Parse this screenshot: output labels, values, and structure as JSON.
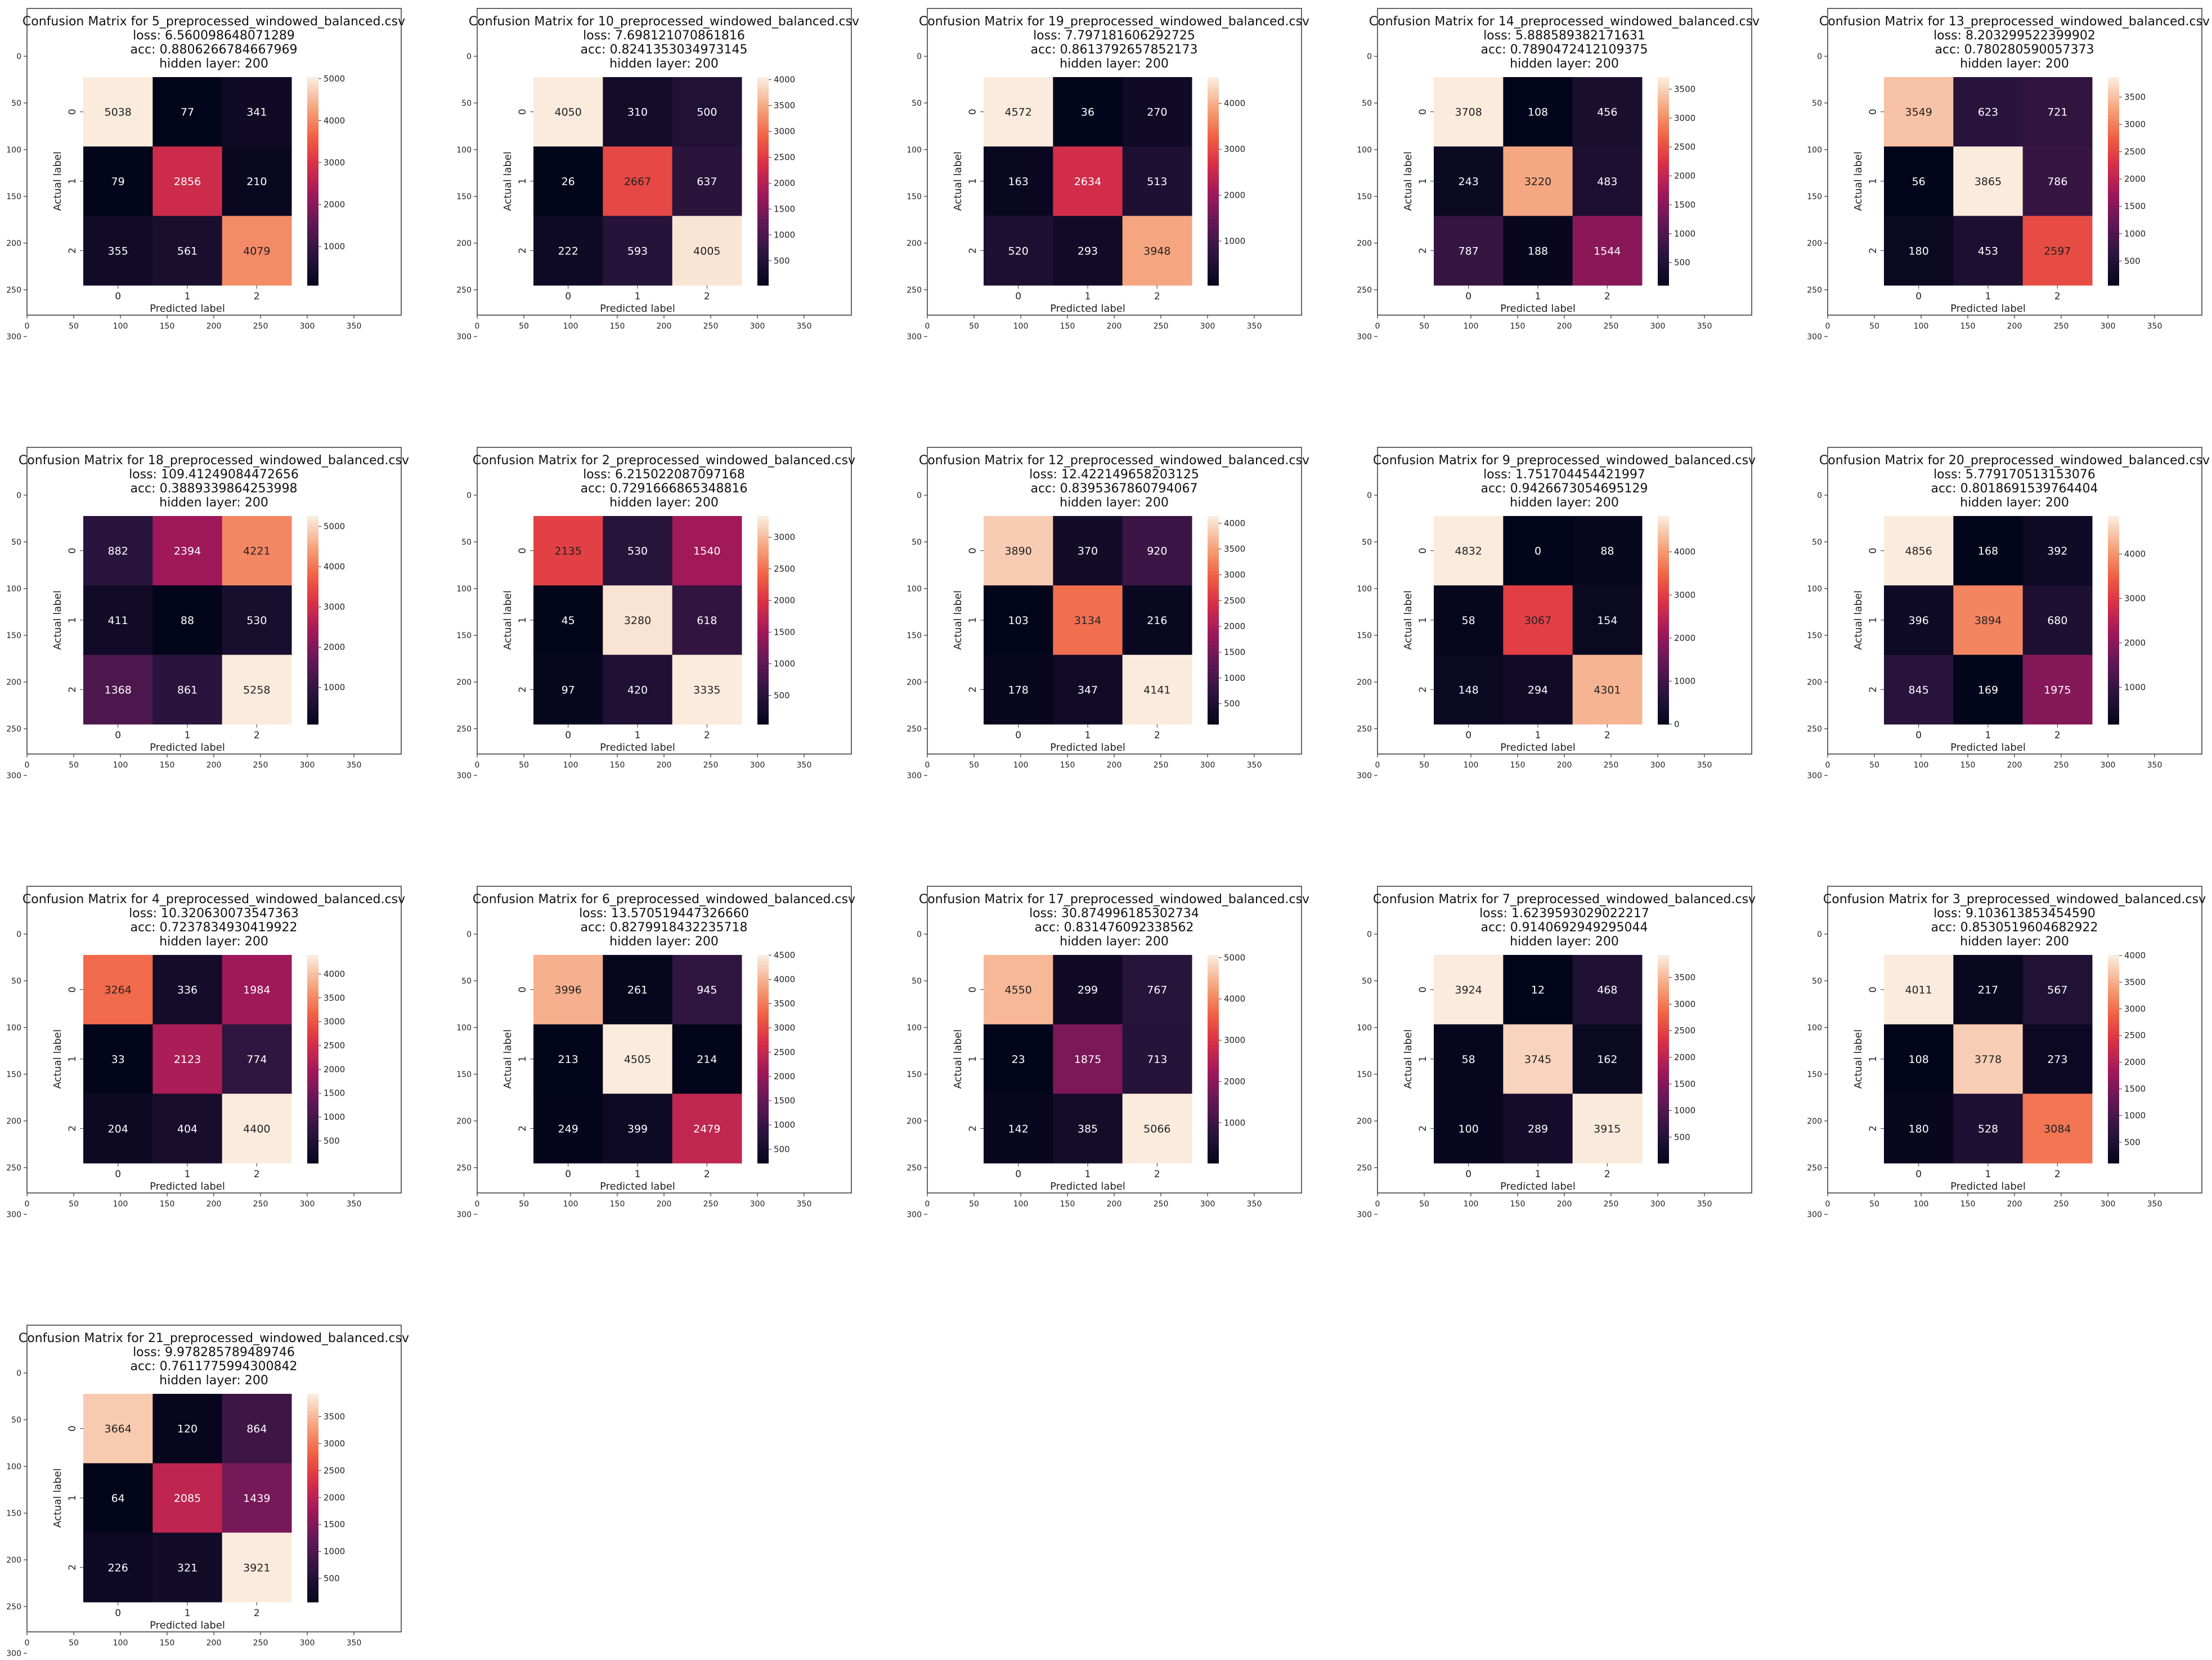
{
  "common": {
    "hidden_label": "hidden layer: 200",
    "xlabel": "Predicted label",
    "ylabel": "Actual label",
    "class_labels": [
      "0",
      "1",
      "2"
    ],
    "outer_y_ticks": [
      "0",
      "50",
      "100",
      "150",
      "200",
      "250",
      "300"
    ],
    "outer_x_ticks": [
      "0",
      "50",
      "100",
      "150",
      "200",
      "250",
      "300",
      "350"
    ]
  },
  "chart_data": [
    {
      "type": "heatmap",
      "title": "Confusion Matrix for 5_preprocessed_windowed_balanced.csv",
      "loss": "loss: 6.560098648071289",
      "acc": "acc: 0.8806266784667969",
      "matrix": [
        [
          5038,
          77,
          341
        ],
        [
          79,
          2856,
          210
        ],
        [
          355,
          561,
          4079
        ]
      ],
      "cbar_ticks": [
        1000,
        2000,
        3000,
        4000,
        5000
      ]
    },
    {
      "type": "heatmap",
      "title": "Confusion Matrix for 10_preprocessed_windowed_balanced.csv",
      "loss": "loss: 7.698121070861816",
      "acc": "acc: 0.8241353034973145",
      "matrix": [
        [
          4050,
          310,
          500
        ],
        [
          26,
          2667,
          637
        ],
        [
          222,
          593,
          4005
        ]
      ],
      "cbar_ticks": [
        500,
        1000,
        1500,
        2000,
        2500,
        3000,
        3500,
        4000
      ]
    },
    {
      "type": "heatmap",
      "title": "Confusion Matrix for 19_preprocessed_windowed_balanced.csv",
      "loss": "loss: 7.797181606292725",
      "acc": "acc: 0.8613792657852173",
      "matrix": [
        [
          4572,
          36,
          270
        ],
        [
          163,
          2634,
          513
        ],
        [
          520,
          293,
          3948
        ]
      ],
      "cbar_ticks": [
        1000,
        2000,
        3000,
        4000
      ]
    },
    {
      "type": "heatmap",
      "title": "Confusion Matrix for 14_preprocessed_windowed_balanced.csv",
      "loss": "loss: 5.888589382171631",
      "acc": "acc: 0.7890472412109375",
      "matrix": [
        [
          3708,
          108,
          456
        ],
        [
          243,
          3220,
          483
        ],
        [
          787,
          188,
          1544
        ]
      ],
      "cbar_ticks": [
        500,
        1000,
        1500,
        2000,
        2500,
        3000,
        3500
      ]
    },
    {
      "type": "heatmap",
      "title": "Confusion Matrix for 13_preprocessed_windowed_balanced.csv",
      "loss": "loss: 8.203299522399902",
      "acc": "acc: 0.780280590057373",
      "matrix": [
        [
          3549,
          623,
          721
        ],
        [
          56,
          3865,
          786
        ],
        [
          180,
          453,
          2597
        ]
      ],
      "cbar_ticks": [
        500,
        1000,
        1500,
        2000,
        2500,
        3000,
        3500
      ]
    },
    {
      "type": "heatmap",
      "title": "Confusion Matrix for 18_preprocessed_windowed_balanced.csv",
      "loss": "loss: 109.41249084472656",
      "acc": "acc: 0.3889339864253998",
      "matrix": [
        [
          882,
          2394,
          4221
        ],
        [
          411,
          88,
          530
        ],
        [
          1368,
          861,
          5258
        ]
      ],
      "cbar_ticks": [
        1000,
        2000,
        3000,
        4000,
        5000
      ]
    },
    {
      "type": "heatmap",
      "title": "Confusion Matrix for 2_preprocessed_windowed_balanced.csv",
      "loss": "loss: 6.215022087097168",
      "acc": "acc: 0.7291666865348816",
      "matrix": [
        [
          2135,
          530,
          1540
        ],
        [
          45,
          3280,
          618
        ],
        [
          97,
          420,
          3335
        ]
      ],
      "cbar_ticks": [
        500,
        1000,
        1500,
        2000,
        2500,
        3000
      ]
    },
    {
      "type": "heatmap",
      "title": "Confusion Matrix for 12_preprocessed_windowed_balanced.csv",
      "loss": "loss: 12.422149658203125",
      "acc": "acc: 0.8395367860794067",
      "matrix": [
        [
          3890,
          370,
          920
        ],
        [
          103,
          3134,
          216
        ],
        [
          178,
          347,
          4141
        ]
      ],
      "cbar_ticks": [
        500,
        1000,
        1500,
        2000,
        2500,
        3000,
        3500,
        4000
      ]
    },
    {
      "type": "heatmap",
      "title": "Confusion Matrix for 9_preprocessed_windowed_balanced.csv",
      "loss": "loss: 1.751704454421997",
      "acc": "acc: 0.9426673054695129",
      "matrix": [
        [
          4832,
          0,
          88
        ],
        [
          58,
          3067,
          154
        ],
        [
          148,
          294,
          4301
        ]
      ],
      "cbar_ticks": [
        0,
        1000,
        2000,
        3000,
        4000
      ]
    },
    {
      "type": "heatmap",
      "title": "Confusion Matrix for 20_preprocessed_windowed_balanced.csv",
      "loss": "loss: 5.779170513153076",
      "acc": "acc: 0.8018691539764404",
      "matrix": [
        [
          4856,
          168,
          392
        ],
        [
          396,
          3894,
          680
        ],
        [
          845,
          169,
          1975
        ]
      ],
      "cbar_ticks": [
        1000,
        2000,
        3000,
        4000
      ]
    },
    {
      "type": "heatmap",
      "title": "Confusion Matrix for 4_preprocessed_windowed_balanced.csv",
      "loss": "loss: 10.320630073547363",
      "acc": "acc: 0.7237834930419922",
      "matrix": [
        [
          3264,
          336,
          1984
        ],
        [
          33,
          2123,
          774
        ],
        [
          204,
          404,
          4400
        ]
      ],
      "cbar_ticks": [
        500,
        1000,
        1500,
        2000,
        2500,
        3000,
        3500,
        4000
      ]
    },
    {
      "type": "heatmap",
      "title": "Confusion Matrix for 6_preprocessed_windowed_balanced.csv",
      "loss": "loss: 13.570519447326660",
      "acc": "acc: 0.8279918432235718",
      "matrix": [
        [
          3996,
          261,
          945
        ],
        [
          213,
          4505,
          214
        ],
        [
          249,
          399,
          2479
        ]
      ],
      "cbar_ticks": [
        500,
        1000,
        1500,
        2000,
        2500,
        3000,
        3500,
        4000,
        4500
      ]
    },
    {
      "type": "heatmap",
      "title": "Confusion Matrix for 17_preprocessed_windowed_balanced.csv",
      "loss": "loss: 30.874996185302734",
      "acc": "acc: 0.831476092338562",
      "matrix": [
        [
          4550,
          299,
          767
        ],
        [
          23,
          1875,
          713
        ],
        [
          142,
          385,
          5066
        ]
      ],
      "cbar_ticks": [
        1000,
        2000,
        3000,
        4000,
        5000
      ]
    },
    {
      "type": "heatmap",
      "title": "Confusion Matrix for 7_preprocessed_windowed_balanced.csv",
      "loss": "loss: 1.6239593029022217",
      "acc": "acc: 0.9140692949295044",
      "matrix": [
        [
          3924,
          12,
          468
        ],
        [
          58,
          3745,
          162
        ],
        [
          100,
          289,
          3915
        ]
      ],
      "cbar_ticks": [
        500,
        1000,
        1500,
        2000,
        2500,
        3000,
        3500
      ]
    },
    {
      "type": "heatmap",
      "title": "Confusion Matrix for 3_preprocessed_windowed_balanced.csv",
      "loss": "loss: 9.103613853454590",
      "acc": "acc: 0.8530519604682922",
      "matrix": [
        [
          4011,
          217,
          567
        ],
        [
          108,
          3778,
          273
        ],
        [
          180,
          528,
          3084
        ]
      ],
      "cbar_ticks": [
        500,
        1000,
        1500,
        2000,
        2500,
        3000,
        3500,
        4000
      ]
    },
    {
      "type": "heatmap",
      "title": "Confusion Matrix for 21_preprocessed_windowed_balanced.csv",
      "loss": "loss: 9.978285789489746",
      "acc": "acc: 0.7611775994300842",
      "matrix": [
        [
          3664,
          120,
          864
        ],
        [
          64,
          2085,
          1439
        ],
        [
          226,
          321,
          3921
        ]
      ],
      "cbar_ticks": [
        500,
        1000,
        1500,
        2000,
        2500,
        3000,
        3500
      ]
    }
  ]
}
